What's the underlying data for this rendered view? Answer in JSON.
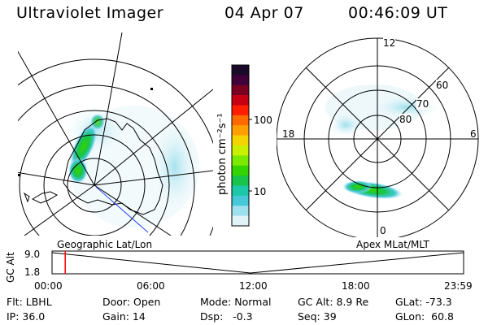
{
  "header": {
    "instrument": "Ultraviolet Imager",
    "date": "04 Apr 07",
    "time": "00:46:09 UT"
  },
  "geo_map": {
    "label": "Geographic Lat/Lon"
  },
  "apex_map": {
    "label": "Apex MLat/MLT",
    "mlt_labels": [
      "12",
      "18",
      "6",
      "0"
    ],
    "mlat_labels": [
      "60",
      "70",
      "80"
    ]
  },
  "colorbar": {
    "unit_label": "photon cm⁻²s⁻¹",
    "ticks": [
      "100",
      "10"
    ],
    "colors": [
      "#1a0a2a",
      "#40003a",
      "#7a0022",
      "#c40012",
      "#ff1e00",
      "#ff6a00",
      "#ffa000",
      "#f4d400",
      "#c8f000",
      "#7cea00",
      "#34d400",
      "#18c44a",
      "#1cc8a8",
      "#46c8d8",
      "#9ee0ec",
      "#e0f4f8"
    ]
  },
  "altitude_plot": {
    "ylabel": "GC Alt",
    "y_ticks": [
      "9.0",
      "1.8"
    ],
    "x_ticks": [
      "00:00",
      "06:00",
      "12:00",
      "18:00",
      "23:59"
    ],
    "current_time_fraction": 0.032
  },
  "info": {
    "flt": "Flt: LBHL",
    "ip": "IP: 36.0",
    "door": "Door: Open",
    "gain": "Gain: 14",
    "mode": "Mode: Normal",
    "dsp": "Dsp:   -0.3",
    "gc_alt": "GC Alt: 8.9 Re",
    "seq": "Seq: 39",
    "glat": "GLat: -73.3",
    "glon": "GLon:  60.8"
  }
}
